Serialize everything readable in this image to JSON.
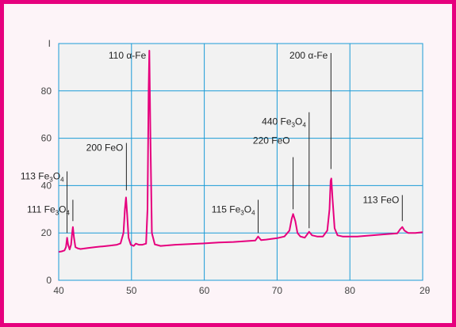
{
  "chart_data": {
    "type": "line",
    "title": "",
    "ylabel": "I",
    "xlabel": "2θ",
    "xlim": [
      40,
      90
    ],
    "ylim": [
      0,
      100
    ],
    "x_ticks": [
      "40",
      "50",
      "60",
      "70",
      "80"
    ],
    "y_ticks": [
      "0",
      "20",
      "40",
      "60",
      "80"
    ],
    "grid": true,
    "colors": {
      "line": "#e6007e",
      "grid": "#1a9bd7",
      "frame": "#e6007e",
      "plot_bg": "#f2f2f2"
    },
    "series": [
      {
        "values": [
          [
            40.0,
            12.0
          ],
          [
            40.4,
            12.2
          ],
          [
            40.8,
            12.6
          ],
          [
            41.0,
            14.0
          ],
          [
            41.15,
            18.0
          ],
          [
            41.3,
            15.0
          ],
          [
            41.5,
            13.0
          ],
          [
            41.7,
            15.0
          ],
          [
            41.85,
            20.0
          ],
          [
            41.95,
            22.5
          ],
          [
            42.1,
            18.0
          ],
          [
            42.3,
            14.0
          ],
          [
            42.6,
            13.5
          ],
          [
            43.0,
            13.2
          ],
          [
            44.0,
            13.6
          ],
          [
            45.0,
            14.0
          ],
          [
            46.0,
            14.3
          ],
          [
            47.0,
            14.6
          ],
          [
            48.0,
            15.0
          ],
          [
            48.5,
            15.6
          ],
          [
            48.9,
            20.0
          ],
          [
            49.1,
            30.0
          ],
          [
            49.25,
            35.0
          ],
          [
            49.4,
            28.0
          ],
          [
            49.6,
            18.0
          ],
          [
            49.9,
            15.0
          ],
          [
            50.3,
            14.5
          ],
          [
            50.6,
            15.5
          ],
          [
            51.0,
            15.0
          ],
          [
            51.5,
            15.0
          ],
          [
            52.0,
            15.5
          ],
          [
            52.2,
            30.0
          ],
          [
            52.35,
            80.0
          ],
          [
            52.45,
            97.0
          ],
          [
            52.6,
            60.0
          ],
          [
            52.8,
            20.0
          ],
          [
            53.2,
            15.2
          ],
          [
            54.0,
            14.5
          ],
          [
            56.0,
            15.0
          ],
          [
            58.0,
            15.3
          ],
          [
            60.0,
            15.6
          ],
          [
            62.0,
            16.0
          ],
          [
            64.0,
            16.2
          ],
          [
            66.0,
            16.6
          ],
          [
            67.0,
            16.8
          ],
          [
            67.4,
            18.5
          ],
          [
            67.8,
            17.0
          ],
          [
            68.5,
            17.2
          ],
          [
            70.0,
            17.8
          ],
          [
            71.0,
            18.5
          ],
          [
            71.7,
            21.0
          ],
          [
            72.0,
            26.0
          ],
          [
            72.2,
            28.0
          ],
          [
            72.5,
            25.0
          ],
          [
            72.8,
            20.0
          ],
          [
            73.2,
            18.5
          ],
          [
            73.8,
            18.0
          ],
          [
            74.4,
            20.5
          ],
          [
            74.8,
            19.0
          ],
          [
            75.5,
            18.5
          ],
          [
            76.3,
            18.5
          ],
          [
            76.9,
            21.0
          ],
          [
            77.2,
            30.0
          ],
          [
            77.35,
            42.0
          ],
          [
            77.45,
            43.0
          ],
          [
            77.6,
            35.0
          ],
          [
            77.9,
            22.0
          ],
          [
            78.3,
            19.0
          ],
          [
            79.0,
            18.5
          ],
          [
            81.0,
            18.5
          ],
          [
            83.0,
            19.0
          ],
          [
            85.0,
            19.5
          ],
          [
            86.5,
            19.8
          ],
          [
            86.9,
            21.5
          ],
          [
            87.2,
            22.5
          ],
          [
            87.5,
            21.0
          ],
          [
            88.0,
            20.0
          ],
          [
            89.0,
            20.0
          ],
          [
            90.0,
            20.3
          ]
        ]
      }
    ],
    "annotations": [
      {
        "label": "110",
        "phase": "α-Fe",
        "x": 52.45,
        "y_text": 95,
        "y_top": 96,
        "y_bot": 96
      },
      {
        "label": "200",
        "phase": "α-Fe",
        "x": 77.4,
        "y_text": 95,
        "y_top": 96,
        "y_bot": 47
      },
      {
        "label": "440",
        "phase": "Fe",
        "sub1": "3",
        "mid": "O",
        "sub2": "4",
        "x": 74.4,
        "y_text": 67,
        "y_top": 71,
        "y_bot": 22
      },
      {
        "label": "220",
        "phase": "FeO",
        "x": 72.2,
        "y_text": 59,
        "y_top": 52,
        "y_bot": 30
      },
      {
        "label": "200",
        "phase": "FeO",
        "x": 49.3,
        "y_text": 56,
        "y_top": 58,
        "y_bot": 38
      },
      {
        "label": "113",
        "phase": "Fe",
        "sub1": "3",
        "mid": "O",
        "sub2": "4",
        "x": 41.15,
        "y_text": 44,
        "y_top": 46,
        "y_bot": 20
      },
      {
        "label": "111",
        "phase": "Fe",
        "sub1": "3",
        "mid": "O",
        "sub2": "4",
        "x": 41.95,
        "y_text": 30,
        "y_top": 34,
        "y_bot": 25
      },
      {
        "label": "115",
        "phase": "Fe",
        "sub1": "3",
        "mid": "O",
        "sub2": "4",
        "x": 67.4,
        "y_text": 30,
        "y_top": 34,
        "y_bot": 20
      },
      {
        "label": "113",
        "phase": "FeO",
        "x": 87.2,
        "y_text": 34,
        "y_top": 36,
        "y_bot": 25
      }
    ]
  }
}
